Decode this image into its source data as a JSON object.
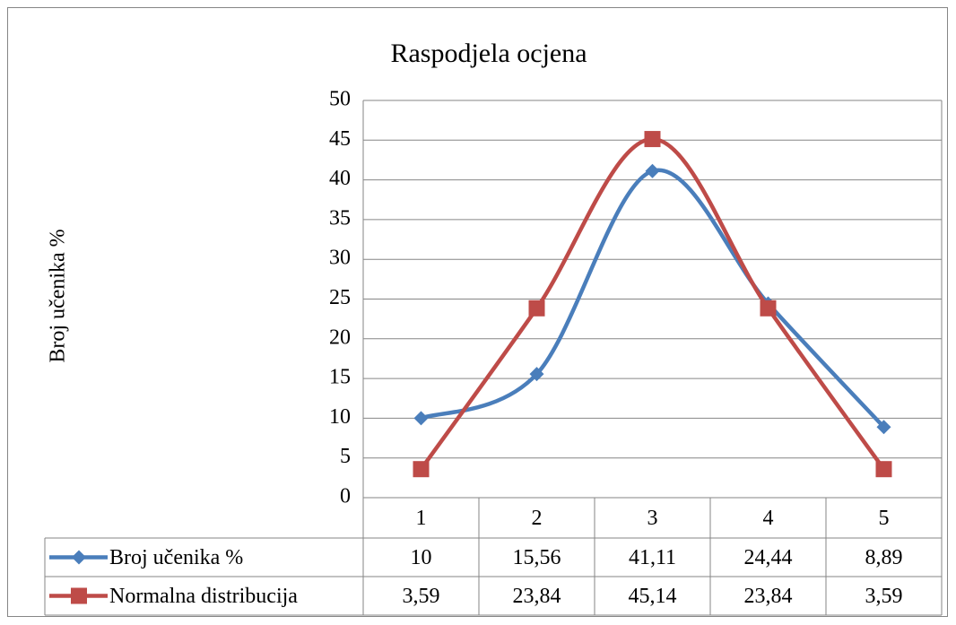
{
  "chart_data": {
    "type": "line",
    "title": "Raspodjela ocjena",
    "ylabel": "Broj učenika %",
    "categories": [
      "1",
      "2",
      "3",
      "4",
      "5"
    ],
    "series": [
      {
        "name": "Broj učenika %",
        "color": "#4a7ebb",
        "marker": "diamond",
        "values": [
          10,
          15.56,
          41.11,
          24.44,
          8.89
        ],
        "value_labels": [
          "10",
          "15,56",
          "41,11",
          "24,44",
          "8,89"
        ]
      },
      {
        "name": "Normalna distribucija",
        "color": "#be4b48",
        "marker": "square",
        "values": [
          3.59,
          23.84,
          45.14,
          23.84,
          3.59
        ],
        "value_labels": [
          "3,59",
          "23,84",
          "45,14",
          "23,84",
          "3,59"
        ]
      }
    ],
    "ylim": [
      0,
      50
    ],
    "yticks": [
      0,
      5,
      10,
      15,
      20,
      25,
      30,
      35,
      40,
      45,
      50
    ],
    "grid": true,
    "smooth": true,
    "data_table": true
  }
}
